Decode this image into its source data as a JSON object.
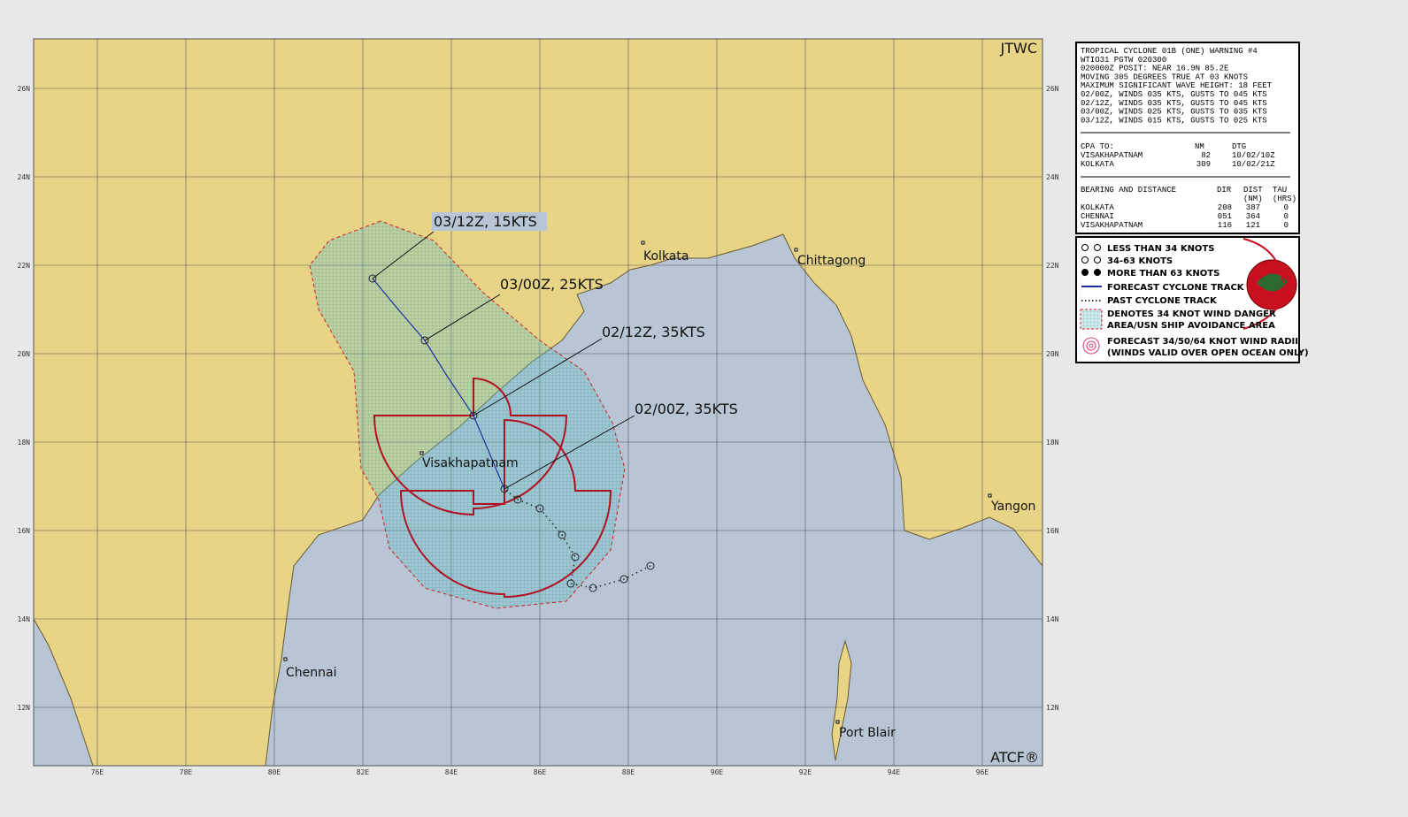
{
  "map": {
    "corner_top": "JTWC",
    "corner_bottom": "ATCF®",
    "lon_labels": [
      "76E",
      "78E",
      "80E",
      "82E",
      "84E",
      "86E",
      "88E",
      "90E",
      "92E",
      "94E",
      "96E"
    ],
    "lat_labels": [
      "26N",
      "24N",
      "22N",
      "20N",
      "18N",
      "16N",
      "14N",
      "12N"
    ],
    "cities": [
      "Kolkata",
      "Chittagong",
      "Visakhapatnam",
      "Chennai",
      "Yangon",
      "Port Blair"
    ],
    "forecast_labels": [
      "03/12Z,  15KTS",
      "03/00Z,  25KTS",
      "02/12Z,  35KTS",
      "02/00Z,  35KTS"
    ]
  },
  "warning": {
    "lines": [
      "TROPICAL CYCLONE 01B (ONE) WARNING #4",
      "WTIO31 PGTW 020300",
      "020000Z POSIT: NEAR 16.9N 85.2E",
      "MOVING 305 DEGREES TRUE AT 03 KNOTS",
      "MAXIMUM SIGNIFICANT WAVE HEIGHT: 18 FEET",
      "02/00Z, WINDS 035 KTS, GUSTS TO 045 KTS",
      "02/12Z, WINDS 035 KTS, GUSTS TO 045 KTS",
      "03/00Z, WINDS 025 KTS, GUSTS TO 035 KTS",
      "03/12Z, WINDS 015 KTS, GUSTS TO 025 KTS"
    ],
    "cpa": {
      "headers": [
        "CPA TO:",
        "NM",
        "DTG"
      ],
      "rows": [
        [
          "VISAKHAPATNAM",
          "82",
          "10/02/10Z"
        ],
        [
          "KOLKATA",
          "309",
          "10/02/21Z"
        ]
      ]
    },
    "bearing": {
      "headers": [
        "BEARING AND DISTANCE",
        "DIR",
        "DIST",
        "TAU"
      ],
      "subheaders": [
        "(NM)",
        "(HRS)"
      ],
      "rows": [
        [
          "KOLKATA",
          "208",
          "387",
          "0"
        ],
        [
          "CHENNAI",
          "051",
          "364",
          "0"
        ],
        [
          "VISAKHAPATNAM",
          "116",
          "121",
          "0"
        ]
      ]
    }
  },
  "legend": {
    "items": [
      "LESS THAN 34 KNOTS",
      "34-63 KNOTS",
      "MORE THAN 63 KNOTS",
      "FORECAST CYCLONE TRACK",
      "PAST CYCLONE TRACK",
      "DENOTES 34 KNOT WIND DANGER",
      "AREA/USN SHIP AVOIDANCE AREA",
      "FORECAST 34/50/64 KNOT WIND RADII",
      "(WINDS VALID OVER OPEN OCEAN ONLY)"
    ]
  }
}
